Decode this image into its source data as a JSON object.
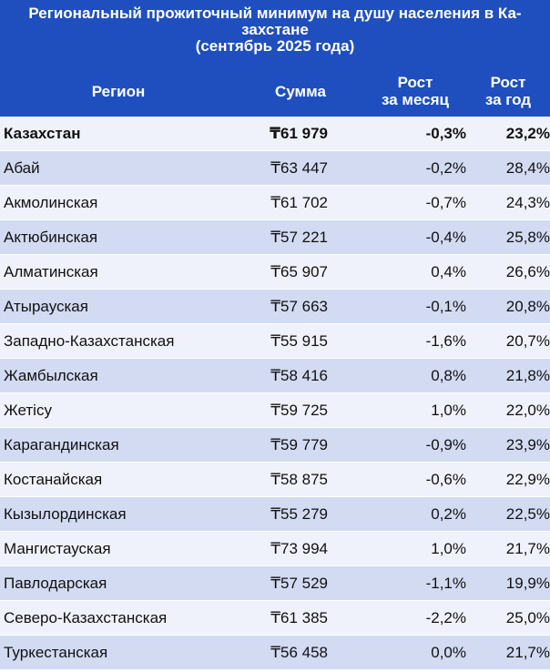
{
  "header": {
    "title": "Региональный прожиточный минимум на душу населения в Ка-\nзахстане\n(сентябрь 2025 года)",
    "col_region": "Регион",
    "col_sum": "Сумма",
    "col_month": "Рост\nза месяц",
    "col_year": "Рост\nза год"
  },
  "rows": [
    {
      "region": "Казахстан",
      "sum": "₸61 979",
      "month": "-0,3%",
      "year": "23,2%"
    },
    {
      "region": "Абай",
      "sum": "₸63 447",
      "month": "-0,2%",
      "year": "28,4%"
    },
    {
      "region": "Акмолинская",
      "sum": "₸61 702",
      "month": "-0,7%",
      "year": "24,3%"
    },
    {
      "region": "Актюбинская",
      "sum": "₸57 221",
      "month": "-0,4%",
      "year": "25,8%"
    },
    {
      "region": "Алматинская",
      "sum": "₸65 907",
      "month": "0,4%",
      "year": "26,6%"
    },
    {
      "region": "Атырауская",
      "sum": "₸57 663",
      "month": "-0,1%",
      "year": "20,8%"
    },
    {
      "region": "Западно-Казахстанская",
      "sum": "₸55 915",
      "month": "-1,6%",
      "year": "20,7%"
    },
    {
      "region": "Жамбылская",
      "sum": "₸58 416",
      "month": "0,8%",
      "year": "21,8%"
    },
    {
      "region": "Жетісу",
      "sum": "₸59 725",
      "month": "1,0%",
      "year": "22,0%"
    },
    {
      "region": "Карагандинская",
      "sum": "₸59 779",
      "month": "-0,9%",
      "year": "23,9%"
    },
    {
      "region": "Костанайская",
      "sum": "₸58 875",
      "month": "-0,6%",
      "year": "22,9%"
    },
    {
      "region": "Кызылординская",
      "sum": "₸55 279",
      "month": "0,2%",
      "year": "22,5%"
    },
    {
      "region": "Мангистауская",
      "sum": "₸73 994",
      "month": "1,0%",
      "year": "21,7%"
    },
    {
      "region": "Павлодарская",
      "sum": "₸57 529",
      "month": "-1,1%",
      "year": "19,9%"
    },
    {
      "region": "Северо-Казахстанская",
      "sum": "₸61 385",
      "month": "-2,2%",
      "year": "25,0%"
    },
    {
      "region": "Туркестанская",
      "sum": "₸56 458",
      "month": "0,0%",
      "year": "21,7%"
    }
  ]
}
